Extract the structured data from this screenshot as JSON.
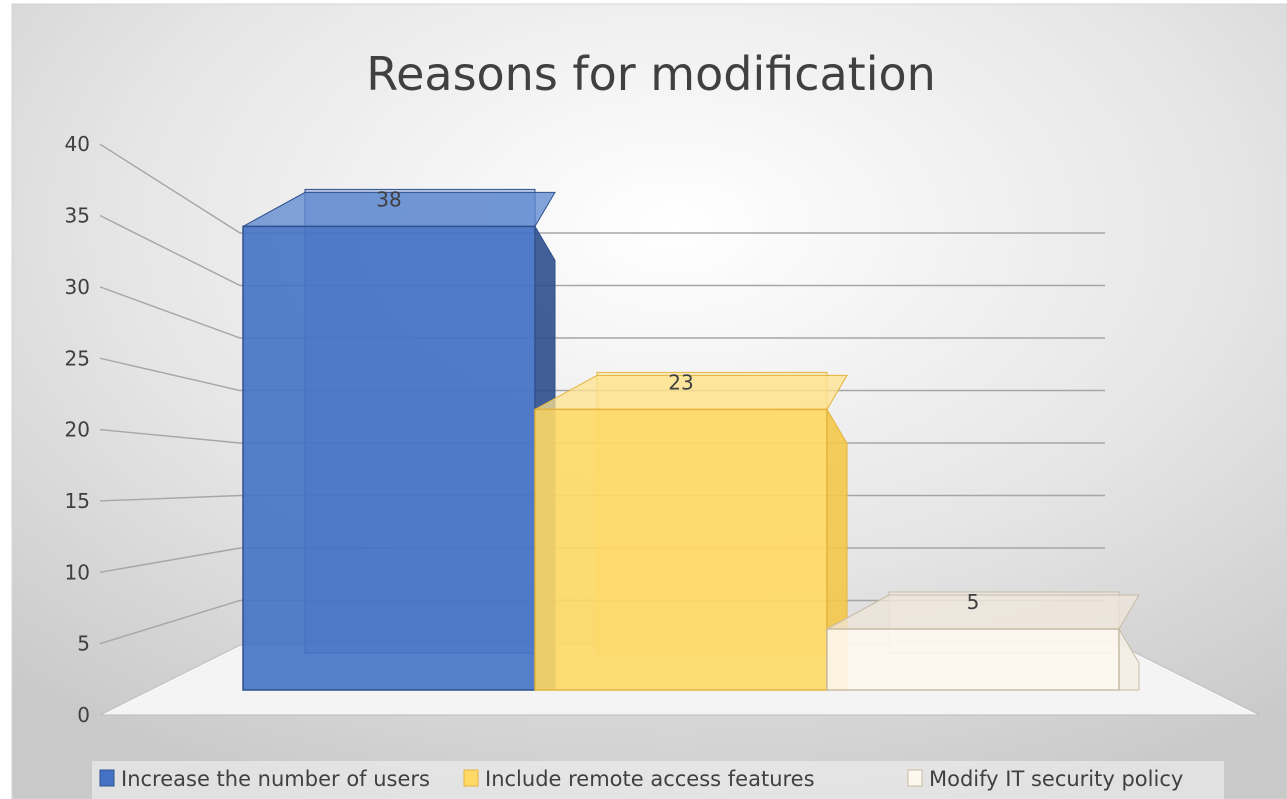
{
  "chart_data": {
    "type": "bar",
    "title": "Reasons for modification",
    "categories": [
      "Increase the number of users",
      "Include remote access features",
      "Modify IT security policy"
    ],
    "values": [
      38,
      23,
      5
    ],
    "data_labels": [
      "38",
      "23",
      "5"
    ],
    "ylim": [
      0,
      40
    ],
    "yticks": [
      "0",
      "5",
      "10",
      "15",
      "20",
      "25",
      "30",
      "35",
      "40"
    ],
    "grid": true,
    "legend_position": "bottom",
    "three_d": true,
    "colors": [
      "#4472C4",
      "#FFD966",
      "#FDF7EE"
    ]
  }
}
